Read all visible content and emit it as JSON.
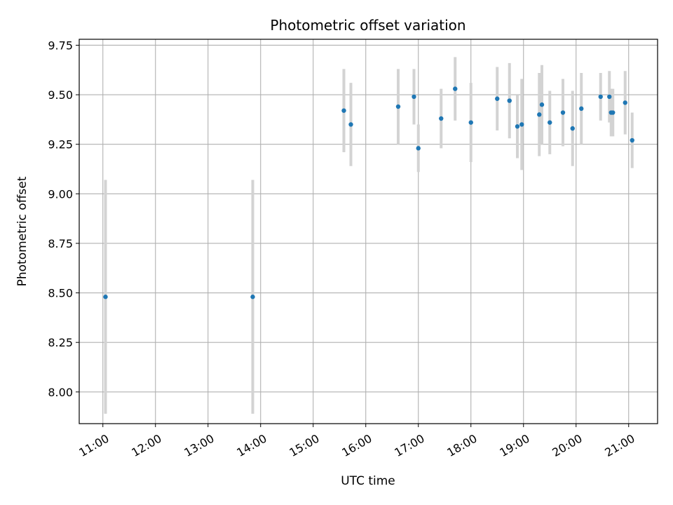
{
  "chart_data": {
    "type": "scatter",
    "title": "Photometric offset variation",
    "xlabel": "UTC time",
    "ylabel": "Photometric offset",
    "grid": true,
    "colors": {
      "point": "#1f77b4",
      "errorbar": "#d3d3d3",
      "grid": "#b0b0b0"
    },
    "xlim": [
      "10:33",
      "21:33"
    ],
    "ylim": [
      7.84,
      9.78
    ],
    "x_ticks": [
      "11:00",
      "12:00",
      "13:00",
      "14:00",
      "15:00",
      "16:00",
      "17:00",
      "18:00",
      "19:00",
      "20:00",
      "21:00"
    ],
    "y_ticks": [
      "8.00",
      "8.25",
      "8.50",
      "8.75",
      "9.00",
      "9.25",
      "9.50",
      "9.75"
    ],
    "y_tick_values": [
      8.0,
      8.25,
      8.5,
      8.75,
      9.0,
      9.25,
      9.5,
      9.75
    ],
    "points": [
      {
        "x": "11:03",
        "y": 8.48,
        "err": 0.59
      },
      {
        "x": "13:51",
        "y": 8.48,
        "err": 0.59
      },
      {
        "x": "15:35",
        "y": 9.42,
        "err": 0.21
      },
      {
        "x": "15:43",
        "y": 9.35,
        "err": 0.21
      },
      {
        "x": "16:37",
        "y": 9.44,
        "err": 0.19
      },
      {
        "x": "16:55",
        "y": 9.49,
        "err": 0.14
      },
      {
        "x": "17:00",
        "y": 9.23,
        "err": 0.12
      },
      {
        "x": "17:26",
        "y": 9.38,
        "err": 0.15
      },
      {
        "x": "17:42",
        "y": 9.53,
        "err": 0.16
      },
      {
        "x": "18:00",
        "y": 9.36,
        "err": 0.2
      },
      {
        "x": "18:30",
        "y": 9.48,
        "err": 0.16
      },
      {
        "x": "18:44",
        "y": 9.47,
        "err": 0.19
      },
      {
        "x": "18:53",
        "y": 9.34,
        "err": 0.16
      },
      {
        "x": "18:58",
        "y": 9.35,
        "err": 0.23
      },
      {
        "x": "19:18",
        "y": 9.4,
        "err": 0.21
      },
      {
        "x": "19:21",
        "y": 9.45,
        "err": 0.2
      },
      {
        "x": "19:30",
        "y": 9.36,
        "err": 0.16
      },
      {
        "x": "19:45",
        "y": 9.41,
        "err": 0.17
      },
      {
        "x": "19:56",
        "y": 9.33,
        "err": 0.19
      },
      {
        "x": "20:06",
        "y": 9.43,
        "err": 0.18
      },
      {
        "x": "20:28",
        "y": 9.49,
        "err": 0.12
      },
      {
        "x": "20:38",
        "y": 9.49,
        "err": 0.13
      },
      {
        "x": "20:40",
        "y": 9.41,
        "err": 0.12
      },
      {
        "x": "20:42",
        "y": 9.41,
        "err": 0.12
      },
      {
        "x": "20:56",
        "y": 9.46,
        "err": 0.16
      },
      {
        "x": "21:04",
        "y": 9.27,
        "err": 0.14
      }
    ]
  }
}
